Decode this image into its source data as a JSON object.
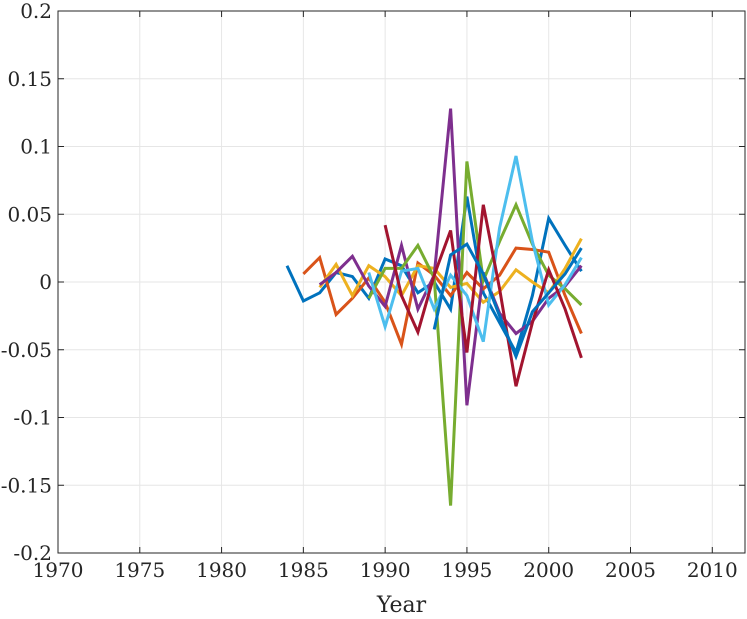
{
  "chart_data": {
    "type": "line",
    "title": "",
    "xlabel": "Year",
    "ylabel": "",
    "xlim": [
      1970,
      2012
    ],
    "ylim": [
      -0.2,
      0.2
    ],
    "grid": true,
    "legend": "none",
    "xticks": [
      1970,
      1975,
      1980,
      1985,
      1990,
      1995,
      2000,
      2005,
      2010
    ],
    "xtick_labels": [
      "1970",
      "1975",
      "1980",
      "1985",
      "1990",
      "1995",
      "2000",
      "2005",
      "2010"
    ],
    "yticks": [
      -0.2,
      -0.15,
      -0.1,
      -0.05,
      0,
      0.05,
      0.1,
      0.15,
      0.2
    ],
    "ytick_labels": [
      "-0.2",
      "-0.15",
      "-0.1",
      "-0.05",
      "0",
      "0.05",
      "0.1",
      "0.15",
      "0.2"
    ],
    "series": [
      {
        "color": "#0072BD",
        "x": [
          1984,
          1985,
          1986,
          1987,
          1988,
          1989,
          1990,
          1991,
          1992,
          1993,
          1994,
          1995,
          1996,
          1997,
          1998,
          1999,
          2000,
          2001,
          2002
        ],
        "y": [
          0.012,
          -0.014,
          -0.008,
          0.007,
          0.004,
          -0.012,
          0.017,
          0.012,
          -0.008,
          0.0,
          -0.02,
          0.063,
          -0.008,
          -0.03,
          -0.052,
          -0.01,
          0.047,
          0.027,
          0.008
        ]
      },
      {
        "color": "#D95319",
        "x": [
          1985,
          1986,
          1987,
          1988,
          1989,
          1990,
          1991,
          1992,
          1993,
          1994,
          1995,
          1996,
          1997,
          1998,
          1999,
          2000,
          2001,
          2002
        ],
        "y": [
          0.006,
          0.018,
          -0.024,
          -0.012,
          0.003,
          -0.015,
          -0.046,
          0.014,
          0.005,
          -0.01,
          0.007,
          -0.005,
          0.005,
          0.025,
          0.024,
          0.022,
          -0.01,
          -0.038
        ]
      },
      {
        "color": "#EDB120",
        "x": [
          1986,
          1987,
          1988,
          1989,
          1990,
          1991,
          1992,
          1993,
          1994,
          1995,
          1996,
          1997,
          1998,
          1999,
          2000,
          2001,
          2002
        ],
        "y": [
          -0.004,
          0.013,
          -0.01,
          0.012,
          0.004,
          -0.01,
          0.012,
          0.01,
          -0.004,
          -0.001,
          -0.015,
          -0.007,
          0.009,
          0.0,
          -0.008,
          0.01,
          0.032
        ]
      },
      {
        "color": "#7E2F8E",
        "x": [
          1986,
          1987,
          1988,
          1989,
          1990,
          1991,
          1992,
          1993,
          1994,
          1995,
          1996,
          1997,
          1998,
          1999,
          2000,
          2001,
          2002
        ],
        "y": [
          -0.002,
          0.007,
          0.019,
          -0.003,
          -0.018,
          0.027,
          -0.02,
          0.005,
          0.128,
          -0.091,
          0.007,
          -0.023,
          -0.038,
          -0.029,
          -0.012,
          -0.003,
          0.012
        ]
      },
      {
        "color": "#77AC30",
        "x": [
          1989,
          1990,
          1991,
          1992,
          1993,
          1994,
          1995,
          1996,
          1997,
          1998,
          1999,
          2000,
          2001,
          2002
        ],
        "y": [
          -0.012,
          0.01,
          0.01,
          0.027,
          0.003,
          -0.165,
          0.089,
          0.001,
          0.03,
          0.057,
          0.028,
          0.005,
          -0.005,
          -0.017
        ]
      },
      {
        "color": "#4DBEEE",
        "x": [
          1989,
          1990,
          1991,
          1992,
          1993,
          1994,
          1995,
          1996,
          1997,
          1998,
          1999,
          2000,
          2001,
          2002
        ],
        "y": [
          0.007,
          -0.033,
          0.008,
          0.01,
          -0.02,
          0.005,
          -0.01,
          -0.044,
          0.04,
          0.093,
          0.03,
          -0.017,
          -0.002,
          0.018
        ]
      },
      {
        "color": "#A2142F",
        "x": [
          1990,
          1991,
          1992,
          1993,
          1994,
          1995,
          1996,
          1997,
          1998,
          1999,
          2000,
          2001,
          2002
        ],
        "y": [
          0.042,
          -0.01,
          -0.037,
          0.005,
          0.038,
          -0.052,
          0.057,
          -0.005,
          -0.077,
          -0.03,
          0.009,
          -0.02,
          -0.056
        ]
      },
      {
        "color": "#0072BD",
        "x": [
          1993,
          1994,
          1995,
          1996,
          1997,
          1998,
          1999,
          2000,
          2001,
          2002
        ],
        "y": [
          -0.035,
          0.02,
          0.028,
          0.006,
          -0.025,
          -0.055,
          -0.022,
          -0.008,
          0.006,
          0.025
        ]
      }
    ]
  }
}
